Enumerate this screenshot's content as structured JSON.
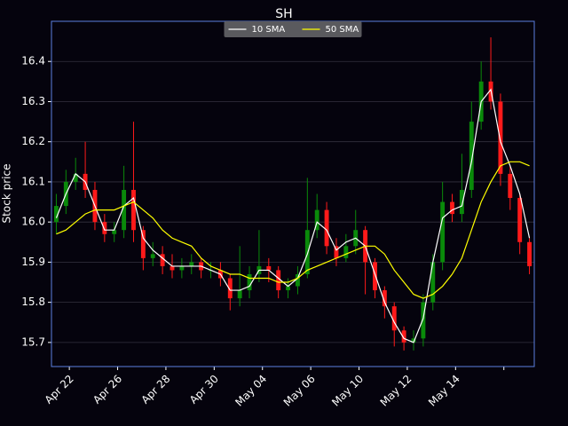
{
  "chart_data": {
    "type": "candlestick",
    "title": "SH",
    "y_label": "Stock price",
    "x": [
      1,
      3,
      5,
      7,
      9,
      11,
      13,
      15,
      17,
      19,
      21,
      23,
      25,
      27,
      29,
      31,
      33,
      35,
      37,
      39,
      41,
      43,
      45,
      47,
      49,
      51,
      53,
      55,
      57,
      59,
      61,
      63,
      65,
      67,
      69,
      71,
      73,
      75,
      77,
      79,
      81,
      83,
      85,
      87,
      89,
      91,
      93,
      95,
      97,
      99
    ],
    "open": [
      16.0,
      16.04,
      16.1,
      16.12,
      16.08,
      16.0,
      15.97,
      15.98,
      16.08,
      15.98,
      15.91,
      15.92,
      15.89,
      15.88,
      15.89,
      15.9,
      15.88,
      15.88,
      15.86,
      15.81,
      15.83,
      15.87,
      15.89,
      15.88,
      15.83,
      15.84,
      15.87,
      15.98,
      16.03,
      15.94,
      15.91,
      15.94,
      15.98,
      15.9,
      15.83,
      15.79,
      15.73,
      15.7,
      15.71,
      15.8,
      15.9,
      16.05,
      16.02,
      16.08,
      16.25,
      16.35,
      16.3,
      16.12,
      16.06,
      15.95
    ],
    "high": [
      16.07,
      16.13,
      16.16,
      16.2,
      16.1,
      16.02,
      16.0,
      16.14,
      16.25,
      15.99,
      15.95,
      15.94,
      15.92,
      15.91,
      15.92,
      15.91,
      15.9,
      15.9,
      15.87,
      15.94,
      15.89,
      15.98,
      15.91,
      15.89,
      15.86,
      15.89,
      16.11,
      16.07,
      16.05,
      15.96,
      15.97,
      16.03,
      15.99,
      15.91,
      15.84,
      15.8,
      15.74,
      15.73,
      15.82,
      15.92,
      16.1,
      16.07,
      16.17,
      16.3,
      16.4,
      16.46,
      16.32,
      16.14,
      16.07,
      15.96
    ],
    "low": [
      15.97,
      16.02,
      16.08,
      16.06,
      15.98,
      15.95,
      15.95,
      15.96,
      15.95,
      15.88,
      15.89,
      15.87,
      15.86,
      15.86,
      15.87,
      15.86,
      15.86,
      15.84,
      15.78,
      15.79,
      15.81,
      15.85,
      15.85,
      15.81,
      15.81,
      15.82,
      15.86,
      15.96,
      15.92,
      15.89,
      15.9,
      15.92,
      15.82,
      15.81,
      15.76,
      15.69,
      15.68,
      15.68,
      15.69,
      15.78,
      15.88,
      16.0,
      16.0,
      16.06,
      16.23,
      16.28,
      16.09,
      16.03,
      15.92,
      15.87
    ],
    "close": [
      16.04,
      16.1,
      16.12,
      16.08,
      16.0,
      15.97,
      15.98,
      16.08,
      15.98,
      15.91,
      15.92,
      15.89,
      15.88,
      15.89,
      15.9,
      15.88,
      15.88,
      15.86,
      15.81,
      15.83,
      15.87,
      15.89,
      15.88,
      15.83,
      15.84,
      15.87,
      15.98,
      16.03,
      15.94,
      15.91,
      15.94,
      15.98,
      15.9,
      15.83,
      15.79,
      15.73,
      15.7,
      15.71,
      15.8,
      15.9,
      16.05,
      16.02,
      16.08,
      16.25,
      16.35,
      16.3,
      16.12,
      16.06,
      15.95,
      15.89
    ],
    "up_color": "#0a8a0a",
    "down_color": "#ff1a1a",
    "series": [
      {
        "name": "10 SMA",
        "color": "#ffffff",
        "values": [
          16.01,
          16.07,
          16.12,
          16.1,
          16.04,
          15.98,
          15.98,
          16.04,
          16.06,
          15.96,
          15.93,
          15.91,
          15.89,
          15.89,
          15.89,
          15.89,
          15.88,
          15.87,
          15.83,
          15.83,
          15.84,
          15.88,
          15.88,
          15.86,
          15.84,
          15.86,
          15.92,
          16.0,
          15.98,
          15.93,
          15.95,
          15.96,
          15.94,
          15.87,
          15.8,
          15.75,
          15.71,
          15.7,
          15.76,
          15.9,
          16.01,
          16.03,
          16.04,
          16.15,
          16.3,
          16.33,
          16.2,
          16.14,
          16.07,
          15.96
        ]
      },
      {
        "name": "50 SMA",
        "color": "#ffff00",
        "values": [
          15.97,
          15.98,
          16.0,
          16.02,
          16.03,
          16.03,
          16.03,
          16.04,
          16.05,
          16.03,
          16.01,
          15.98,
          15.96,
          15.95,
          15.94,
          15.91,
          15.89,
          15.88,
          15.87,
          15.87,
          15.86,
          15.86,
          15.86,
          15.85,
          15.85,
          15.86,
          15.88,
          15.89,
          15.9,
          15.91,
          15.92,
          15.93,
          15.94,
          15.94,
          15.92,
          15.88,
          15.85,
          15.82,
          15.81,
          15.82,
          15.84,
          15.87,
          15.91,
          15.98,
          16.05,
          16.1,
          16.14,
          16.15,
          16.15,
          16.14
        ]
      }
    ],
    "xlim": [
      0,
      100
    ],
    "xticks": [
      {
        "value": 3.7,
        "label": "Apr 22"
      },
      {
        "value": 13.7,
        "label": "Apr 26"
      },
      {
        "value": 23.7,
        "label": "Apr 28"
      },
      {
        "value": 33.7,
        "label": "Apr 30"
      },
      {
        "value": 43.7,
        "label": "May 04"
      },
      {
        "value": 53.7,
        "label": "May 06"
      },
      {
        "value": 63.7,
        "label": "May 10"
      },
      {
        "value": 73.7,
        "label": "May 12"
      },
      {
        "value": 83.7,
        "label": "May 14"
      },
      {
        "value": 93.7,
        "label": null
      }
    ],
    "ylim": [
      15.64,
      16.5
    ],
    "yticks": [
      15.7,
      15.8,
      15.9,
      {
        "value": 16,
        "label": "16.0"
      },
      16.1,
      16.2,
      16.3,
      16.4
    ],
    "grid": true,
    "legend": "upper center"
  }
}
